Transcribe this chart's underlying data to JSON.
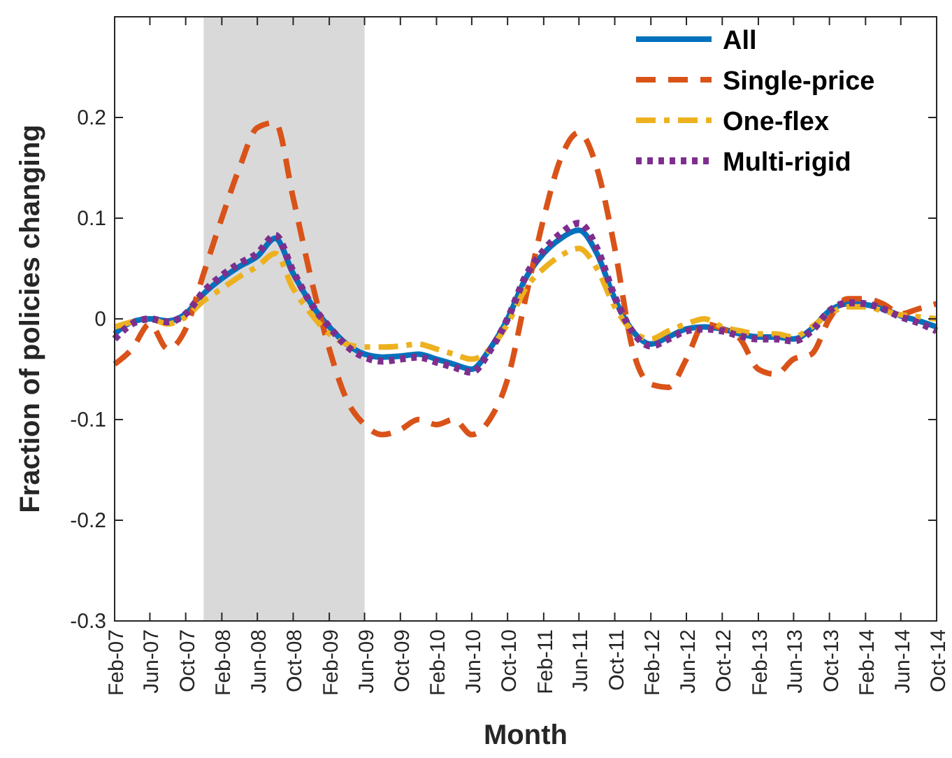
{
  "chart_data": {
    "type": "line",
    "xlabel": "Month",
    "ylabel": "Fraction of policies changing",
    "x": [
      "2007-02",
      "2007-04",
      "2007-06",
      "2007-08",
      "2007-10",
      "2007-12",
      "2008-02",
      "2008-04",
      "2008-06",
      "2008-08",
      "2008-10",
      "2008-12",
      "2009-02",
      "2009-04",
      "2009-06",
      "2009-08",
      "2009-10",
      "2009-12",
      "2010-02",
      "2010-04",
      "2010-06",
      "2010-08",
      "2010-10",
      "2010-12",
      "2011-02",
      "2011-04",
      "2011-06",
      "2011-08",
      "2011-10",
      "2011-12",
      "2012-02",
      "2012-04",
      "2012-06",
      "2012-08",
      "2012-10",
      "2012-12",
      "2013-02",
      "2013-04",
      "2013-06",
      "2013-08",
      "2013-10",
      "2013-12",
      "2014-02",
      "2014-04",
      "2014-06",
      "2014-08",
      "2014-10"
    ],
    "series": [
      {
        "name": "All",
        "color": "#0072bd",
        "line_style": "solid",
        "values": [
          -0.015,
          -0.003,
          0,
          -0.002,
          0.005,
          0.025,
          0.04,
          0.052,
          0.062,
          0.08,
          0.045,
          0.015,
          -0.008,
          -0.025,
          -0.035,
          -0.038,
          -0.037,
          -0.035,
          -0.04,
          -0.045,
          -0.05,
          -0.03,
          0,
          0.04,
          0.065,
          0.08,
          0.088,
          0.065,
          0.02,
          -0.012,
          -0.025,
          -0.018,
          -0.01,
          -0.008,
          -0.01,
          -0.015,
          -0.018,
          -0.018,
          -0.02,
          -0.01,
          0.008,
          0.015,
          0.014,
          0.01,
          0.003,
          -0.002,
          -0.008
        ]
      },
      {
        "name": "Single-price",
        "color": "#d95319",
        "line_style": "dashed",
        "values": [
          -0.045,
          -0.03,
          -0.005,
          -0.03,
          -0.01,
          0.045,
          0.1,
          0.15,
          0.19,
          0.195,
          0.12,
          0.04,
          -0.03,
          -0.08,
          -0.105,
          -0.115,
          -0.11,
          -0.1,
          -0.105,
          -0.1,
          -0.115,
          -0.1,
          -0.06,
          0.02,
          0.1,
          0.16,
          0.185,
          0.15,
          0.07,
          -0.03,
          -0.065,
          -0.068,
          -0.04,
          -0.005,
          -0.01,
          -0.02,
          -0.05,
          -0.055,
          -0.04,
          -0.035,
          0.0,
          0.02,
          0.02,
          0.015,
          0.005,
          0.01,
          0.015
        ]
      },
      {
        "name": "One-flex",
        "color": "#edb120",
        "line_style": "dashdot",
        "values": [
          -0.008,
          -0.003,
          0,
          -0.005,
          0.002,
          0.018,
          0.03,
          0.042,
          0.052,
          0.065,
          0.03,
          0.005,
          -0.015,
          -0.025,
          -0.028,
          -0.028,
          -0.027,
          -0.025,
          -0.03,
          -0.035,
          -0.04,
          -0.03,
          -0.005,
          0.03,
          0.05,
          0.063,
          0.07,
          0.05,
          0.012,
          -0.012,
          -0.02,
          -0.012,
          -0.005,
          0,
          -0.008,
          -0.012,
          -0.015,
          -0.015,
          -0.018,
          -0.008,
          0.005,
          0.012,
          0.012,
          0.008,
          0.004,
          0.002,
          0
        ]
      },
      {
        "name": "Multi-rigid",
        "color": "#7e2f8e",
        "line_style": "dotted",
        "values": [
          -0.02,
          -0.005,
          0,
          -0.003,
          0.005,
          0.027,
          0.043,
          0.055,
          0.065,
          0.083,
          0.047,
          0.015,
          -0.008,
          -0.027,
          -0.038,
          -0.042,
          -0.04,
          -0.038,
          -0.043,
          -0.048,
          -0.053,
          -0.032,
          0,
          0.042,
          0.068,
          0.085,
          0.095,
          0.07,
          0.022,
          -0.013,
          -0.027,
          -0.02,
          -0.012,
          -0.01,
          -0.012,
          -0.017,
          -0.02,
          -0.02,
          -0.022,
          -0.012,
          0.008,
          0.016,
          0.015,
          0.01,
          0.002,
          -0.004,
          -0.012
        ]
      }
    ],
    "xlim": [
      "2007-02",
      "2014-10"
    ],
    "xticks": [
      {
        "value": "2007-02",
        "label": "Feb-07"
      },
      {
        "value": "2007-06",
        "label": "Jun-07"
      },
      {
        "value": "2007-10",
        "label": "Oct-07"
      },
      {
        "value": "2008-02",
        "label": "Feb-08"
      },
      {
        "value": "2008-06",
        "label": "Jun-08"
      },
      {
        "value": "2008-10",
        "label": "Oct-08"
      },
      {
        "value": "2009-02",
        "label": "Feb-09"
      },
      {
        "value": "2009-06",
        "label": "Jun-09"
      },
      {
        "value": "2009-10",
        "label": "Oct-09"
      },
      {
        "value": "2010-02",
        "label": "Feb-10"
      },
      {
        "value": "2010-06",
        "label": "Jun-10"
      },
      {
        "value": "2010-10",
        "label": "Oct-10"
      },
      {
        "value": "2011-02",
        "label": "Feb-11"
      },
      {
        "value": "2011-06",
        "label": "Jun-11"
      },
      {
        "value": "2011-10",
        "label": "Oct-11"
      },
      {
        "value": "2012-02",
        "label": "Feb-12"
      },
      {
        "value": "2012-06",
        "label": "Jun-12"
      },
      {
        "value": "2012-10",
        "label": "Oct-12"
      },
      {
        "value": "2013-02",
        "label": "Feb-13"
      },
      {
        "value": "2013-06",
        "label": "Jun-13"
      },
      {
        "value": "2013-10",
        "label": "Oct-13"
      },
      {
        "value": "2014-02",
        "label": "Feb-14"
      },
      {
        "value": "2014-06",
        "label": "Jun-14"
      },
      {
        "value": "2014-10",
        "label": "Oct-14"
      }
    ],
    "ylim": [
      -0.3,
      0.3
    ],
    "yticks": [
      -0.3,
      -0.2,
      -0.1,
      0,
      0.1,
      0.2
    ],
    "bands": [
      {
        "axis": "x",
        "from": "2007-12",
        "to": "2009-06",
        "color": "#d9d9d9"
      }
    ],
    "grid": false,
    "legend": "top right"
  }
}
